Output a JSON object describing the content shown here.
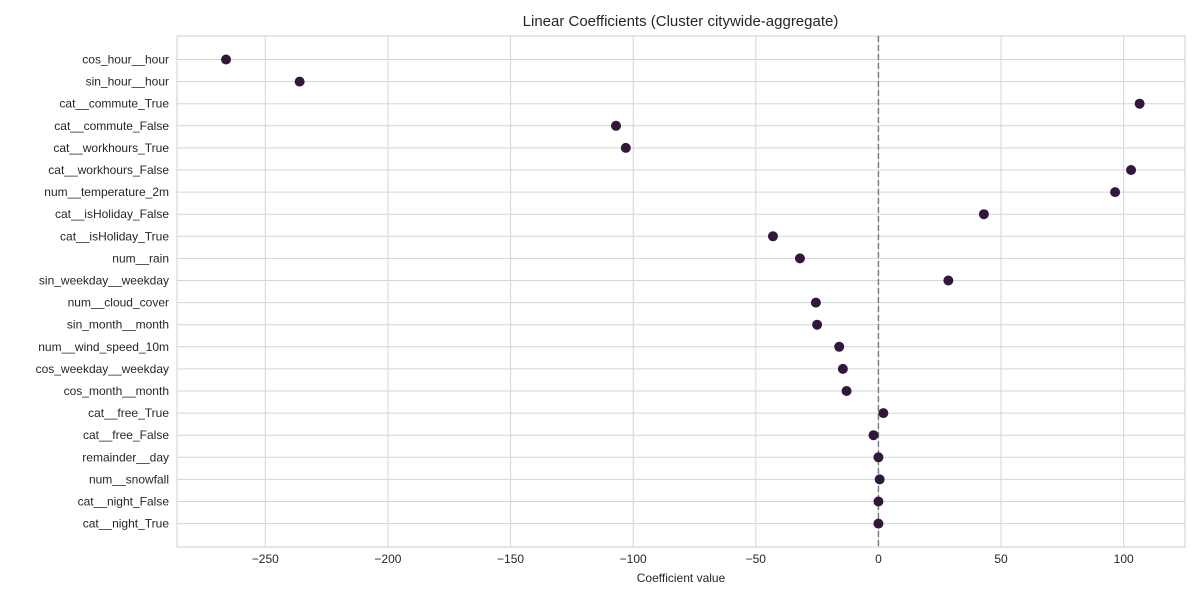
{
  "chart_data": {
    "type": "scatter",
    "title": "Linear Coefficients (Cluster citywide-aggregate)",
    "xlabel": "Coefficient value",
    "ylabel": "",
    "xlim": [
      -286,
      125
    ],
    "xticks": [
      -250,
      -200,
      -150,
      -100,
      -50,
      0,
      50,
      100
    ],
    "xtick_labels": [
      "−250",
      "−200",
      "−150",
      "−100",
      "−50",
      "0",
      "50",
      "100"
    ],
    "grid": true,
    "reference_line": {
      "x": 0,
      "style": "dashed"
    },
    "marker_color": "#32173d",
    "categories": [
      "cos_hour__hour",
      "sin_hour__hour",
      "cat__commute_True",
      "cat__commute_False",
      "cat__workhours_True",
      "cat__workhours_False",
      "num__temperature_2m",
      "cat__isHoliday_False",
      "cat__isHoliday_True",
      "num__rain",
      "sin_weekday__weekday",
      "num__cloud_cover",
      "sin_month__month",
      "num__wind_speed_10m",
      "cos_weekday__weekday",
      "cos_month__month",
      "cat__free_True",
      "cat__free_False",
      "remainder__day",
      "num__snowfall",
      "cat__night_False",
      "cat__night_True"
    ],
    "values": [
      -266,
      -236,
      106.5,
      -107,
      -103,
      103,
      96.5,
      43,
      -43,
      -32,
      28.5,
      -25.5,
      -25,
      -16,
      -14.5,
      -13,
      2,
      -2,
      0,
      0.5,
      0,
      0
    ]
  }
}
